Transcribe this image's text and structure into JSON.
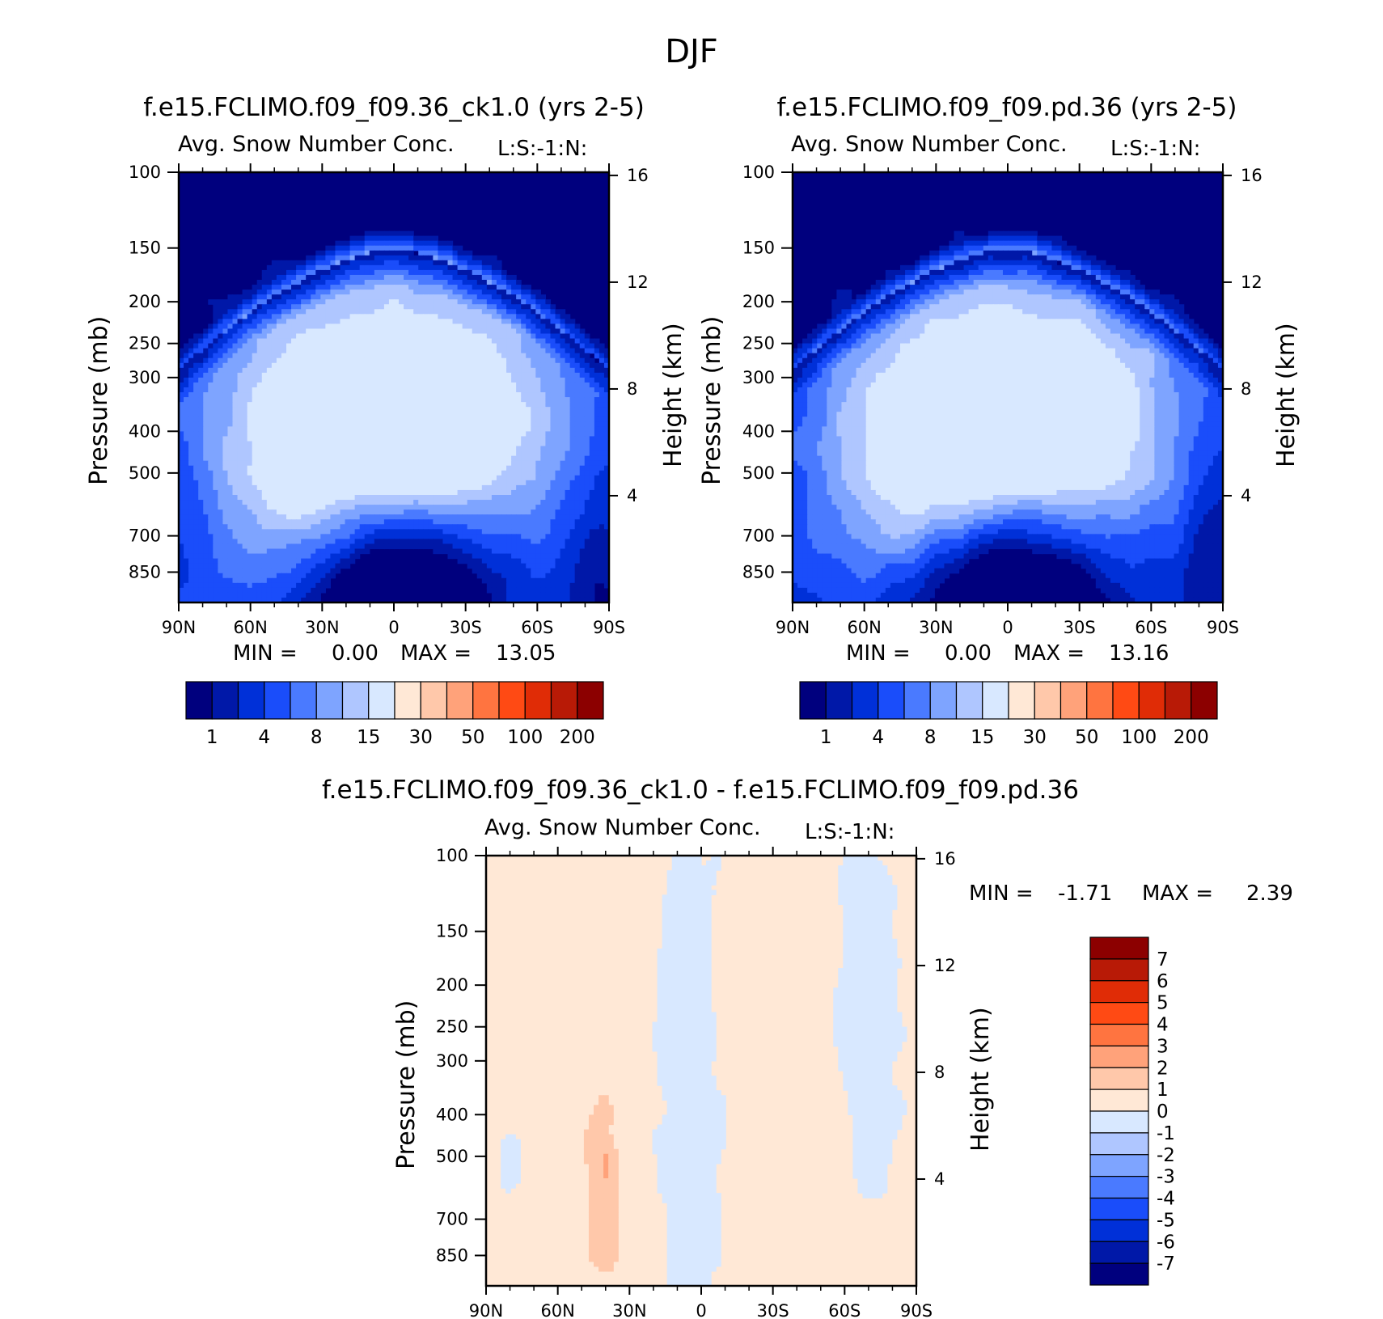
{
  "figure": {
    "season": "DJF"
  },
  "panels": [
    {
      "id": "panel1",
      "case": "f.e15.FCLIMO.f09_f09.36_ck1.0 (yrs 2-5)",
      "variable": "Avg. Snow Number Conc.",
      "units": "L:S:-1:N:",
      "ylabel": "Pressure (mb)",
      "y2label": "Height (km)",
      "min_label": "MIN =",
      "min": "0.00",
      "max_label": "MAX =",
      "max": "13.05"
    },
    {
      "id": "panel2",
      "case": "f.e15.FCLIMO.f09_f09.pd.36 (yrs 2-5)",
      "variable": "Avg. Snow Number Conc.",
      "units": "L:S:-1:N:",
      "ylabel": "Pressure (mb)",
      "y2label": "Height (km)",
      "min_label": "MIN =",
      "min": "0.00",
      "max_label": "MAX =",
      "max": "13.16"
    },
    {
      "id": "panel3",
      "case": "f.e15.FCLIMO.f09_f09.36_ck1.0 - f.e15.FCLIMO.f09_f09.pd.36",
      "variable": "Avg. Snow Number Conc.",
      "units": "L:S:-1:N:",
      "ylabel": "Pressure (mb)",
      "y2label": "Height (km)",
      "min_label": "MIN =",
      "min": "-1.71",
      "max_label": "MAX =",
      "max": "2.39"
    }
  ],
  "chart_data": [
    {
      "type": "heatmap",
      "title": "f.e15.FCLIMO.f09_f09.36_ck1.0 (yrs 2-5)",
      "subtitle": "Avg. Snow Number Conc.",
      "ylabel": "Pressure (mb)",
      "y2label": "Height (km)",
      "x_ticks": [
        "90N",
        "60N",
        "30N",
        "0",
        "30S",
        "60S",
        "90S"
      ],
      "x_range": [
        90,
        -90
      ],
      "y_ticks": [
        100,
        150,
        200,
        250,
        300,
        400,
        500,
        700,
        850
      ],
      "y_scale": "log",
      "y_range": [
        100,
        1000
      ],
      "y2_ticks": [
        16,
        12,
        8,
        4
      ],
      "colorbar_ticks": [
        "1",
        "4",
        "8",
        "15",
        "30",
        "50",
        "100",
        "200"
      ],
      "min": 0.0,
      "max": 13.05
    },
    {
      "type": "heatmap",
      "title": "f.e15.FCLIMO.f09_f09.pd.36 (yrs 2-5)",
      "subtitle": "Avg. Snow Number Conc.",
      "ylabel": "Pressure (mb)",
      "y2label": "Height (km)",
      "x_ticks": [
        "90N",
        "60N",
        "30N",
        "0",
        "30S",
        "60S",
        "90S"
      ],
      "x_range": [
        90,
        -90
      ],
      "y_ticks": [
        100,
        150,
        200,
        250,
        300,
        400,
        500,
        700,
        850
      ],
      "y_scale": "log",
      "y_range": [
        100,
        1000
      ],
      "y2_ticks": [
        16,
        12,
        8,
        4
      ],
      "colorbar_ticks": [
        "1",
        "4",
        "8",
        "15",
        "30",
        "50",
        "100",
        "200"
      ],
      "min": 0.0,
      "max": 13.16
    },
    {
      "type": "heatmap",
      "title": "f.e15.FCLIMO.f09_f09.36_ck1.0 - f.e15.FCLIMO.f09_f09.pd.36",
      "subtitle": "Avg. Snow Number Conc.",
      "ylabel": "Pressure (mb)",
      "y2label": "Height (km)",
      "x_ticks": [
        "90N",
        "60N",
        "30N",
        "0",
        "30S",
        "60S",
        "90S"
      ],
      "x_range": [
        90,
        -90
      ],
      "y_ticks": [
        100,
        150,
        200,
        250,
        300,
        400,
        500,
        700,
        850
      ],
      "y_scale": "log",
      "y_range": [
        100,
        1000
      ],
      "y2_ticks": [
        16,
        12,
        8,
        4
      ],
      "colorbar_ticks": [
        "7",
        "6",
        "5",
        "4",
        "3",
        "2",
        "1",
        "0",
        "-1",
        "-2",
        "-3",
        "-4",
        "-5",
        "-6",
        "-7"
      ],
      "min": -1.71,
      "max": 2.39
    }
  ],
  "colors": {
    "seq": [
      "#00007e",
      "#0018a8",
      "#0030d8",
      "#1a4dfa",
      "#4a7aff",
      "#7ea4ff",
      "#afc6ff",
      "#d8e8ff",
      "#ffe8d6",
      "#ffc8aa",
      "#ffa27a",
      "#ff7440",
      "#ff4a14",
      "#e02c06",
      "#b81a06",
      "#8c0000"
    ],
    "diff": [
      "#8c0000",
      "#b81a06",
      "#e02c06",
      "#ff4a14",
      "#ff7440",
      "#ffa27a",
      "#ffc8aa",
      "#ffe8d6",
      "#d8e8ff",
      "#afc6ff",
      "#7ea4ff",
      "#4a7aff",
      "#1a4dfa",
      "#0030d8",
      "#0018a8",
      "#00007e"
    ]
  }
}
